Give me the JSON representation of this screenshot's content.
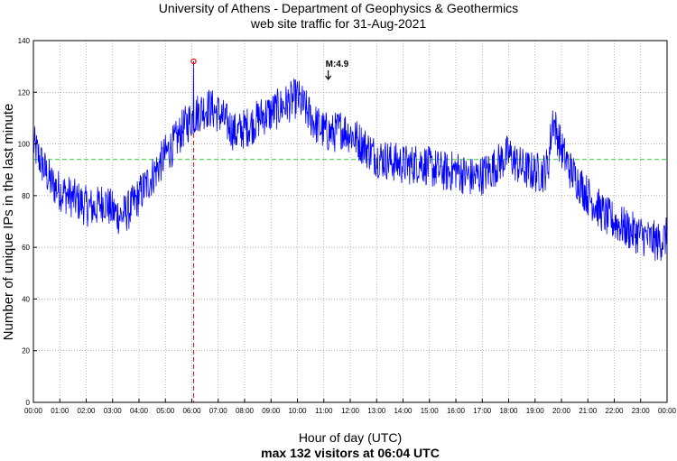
{
  "chart_data": {
    "type": "line",
    "title": "University of Athens - Department of Geophysics & Geothermics",
    "subtitle": "web site traffic for 31-Aug-2021",
    "xlabel": "Hour of day (UTC)",
    "ylabel": "Number of unique IPs in the last minute",
    "footer": "max 132 visitors at 06:04 UTC",
    "xlim": [
      0,
      1440
    ],
    "ylim": [
      0,
      140
    ],
    "yticks": [
      "0",
      "20",
      "40",
      "60",
      "80",
      "100",
      "120",
      "140"
    ],
    "xticks": [
      "00:00",
      "01:00",
      "02:00",
      "03:00",
      "04:00",
      "05:00",
      "06:00",
      "07:00",
      "08:00",
      "09:00",
      "10:00",
      "11:00",
      "12:00",
      "13:00",
      "14:00",
      "15:00",
      "16:00",
      "17:00",
      "18:00",
      "19:00",
      "20:00",
      "21:00",
      "22:00",
      "23:00",
      "00:00"
    ],
    "grid": true,
    "mean_line": {
      "value": 94,
      "color": "#33cc33"
    },
    "max_marker": {
      "minute": 364,
      "value": 132,
      "color": "#ff0000"
    },
    "annotation": {
      "label": "M:4.9",
      "minute": 670,
      "value": 125
    },
    "series": [
      {
        "name": "unique IPs per minute",
        "color": "#0000ff",
        "x_minutes": [
          0,
          20,
          40,
          60,
          80,
          100,
          120,
          140,
          160,
          180,
          200,
          220,
          240,
          260,
          280,
          300,
          320,
          340,
          360,
          380,
          400,
          420,
          440,
          460,
          480,
          500,
          520,
          540,
          560,
          580,
          600,
          620,
          640,
          660,
          680,
          700,
          720,
          740,
          760,
          780,
          800,
          820,
          840,
          860,
          880,
          900,
          920,
          940,
          960,
          980,
          1000,
          1020,
          1040,
          1060,
          1080,
          1100,
          1120,
          1140,
          1160,
          1170,
          1180,
          1200,
          1220,
          1240,
          1260,
          1280,
          1300,
          1320,
          1340,
          1360,
          1380,
          1400,
          1420,
          1440
        ],
        "values": [
          100,
          92,
          85,
          82,
          80,
          78,
          76,
          75,
          78,
          74,
          72,
          75,
          80,
          85,
          90,
          96,
          100,
          106,
          110,
          113,
          114,
          112,
          108,
          104,
          106,
          108,
          111,
          112,
          114,
          116,
          118,
          113,
          108,
          105,
          104,
          106,
          104,
          101,
          98,
          95,
          94,
          93,
          92,
          92,
          93,
          91,
          90,
          89,
          90,
          88,
          87,
          88,
          90,
          93,
          96,
          92,
          90,
          89,
          89,
          92,
          110,
          98,
          90,
          85,
          80,
          76,
          72,
          70,
          68,
          66,
          65,
          63,
          62,
          64
        ]
      }
    ]
  }
}
